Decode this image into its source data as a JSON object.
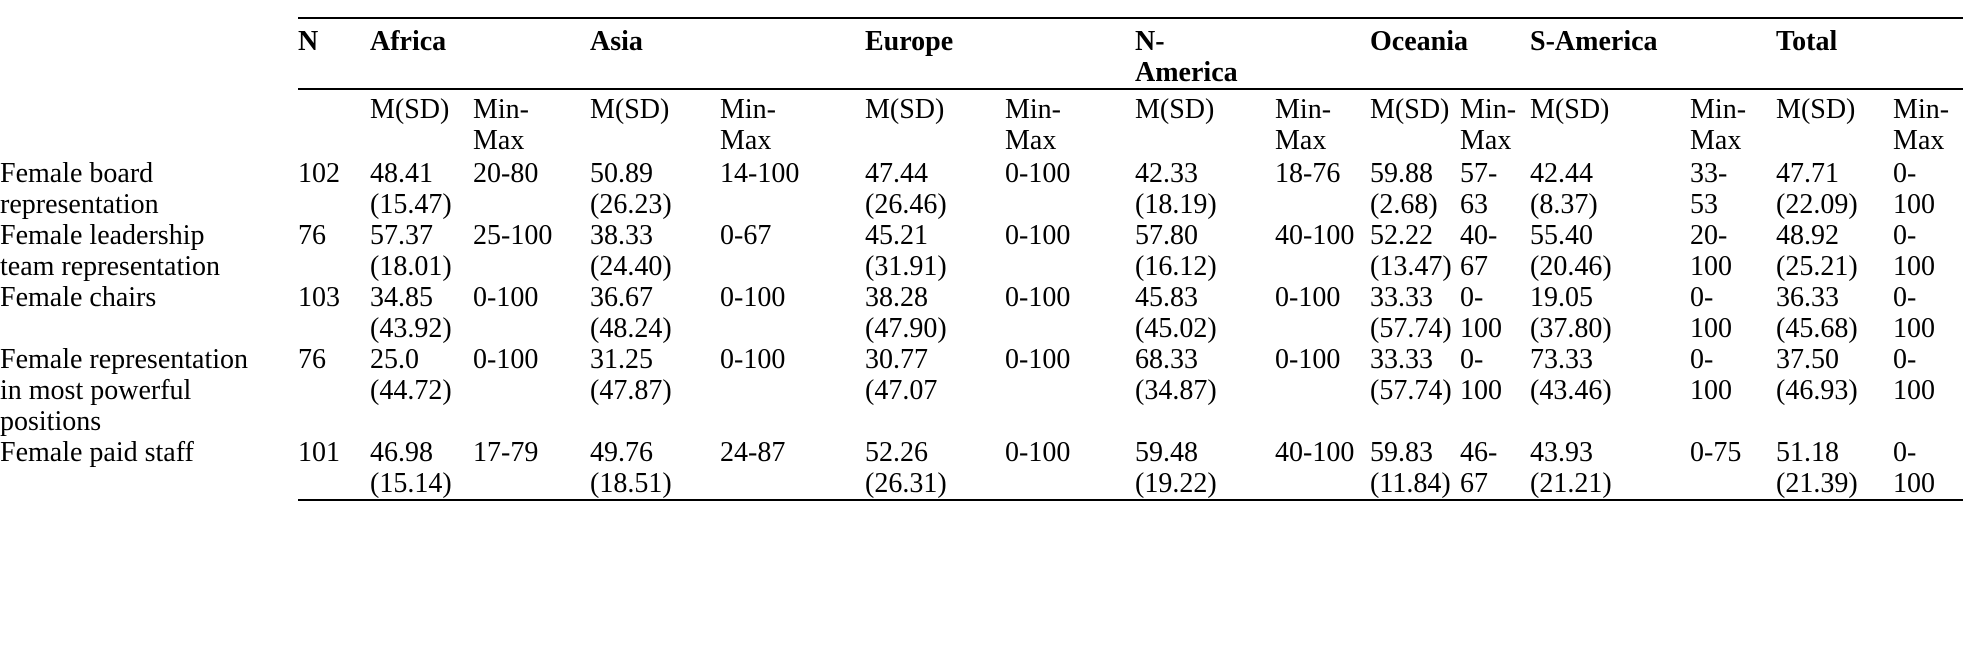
{
  "table": {
    "n_header": "N",
    "sub_header_m": "M(SD)",
    "sub_header_minmax": "Min-\nMax",
    "groups": [
      "Africa",
      "Asia",
      "Europe",
      "N-\nAmerica",
      "Oceania",
      "S-America",
      "Total"
    ],
    "rows": [
      {
        "label": "Female board\nrepresentation",
        "n": "102",
        "cells": [
          {
            "m": "48.41\n(15.47)",
            "minmax": "20-80"
          },
          {
            "m": "50.89\n(26.23)",
            "minmax": "14-100"
          },
          {
            "m": "47.44\n(26.46)",
            "minmax": "0-100"
          },
          {
            "m": "42.33\n(18.19)",
            "minmax": "18-76"
          },
          {
            "m": "59.88\n(2.68)",
            "minmax": "57-\n63"
          },
          {
            "m": "42.44\n(8.37)",
            "minmax": "33-\n53"
          },
          {
            "m": "47.71\n(22.09)",
            "minmax": "0-\n100"
          }
        ]
      },
      {
        "label": "Female leadership\nteam representation",
        "n": "76",
        "cells": [
          {
            "m": "57.37\n(18.01)",
            "minmax": "25-100"
          },
          {
            "m": "38.33\n(24.40)",
            "minmax": "0-67"
          },
          {
            "m": "45.21\n(31.91)",
            "minmax": "0-100"
          },
          {
            "m": "57.80\n(16.12)",
            "minmax": "40-100"
          },
          {
            "m": "52.22\n(13.47)",
            "minmax": "40-\n67"
          },
          {
            "m": "55.40\n(20.46)",
            "minmax": "20-\n100"
          },
          {
            "m": "48.92\n(25.21)",
            "minmax": "0-\n100"
          }
        ]
      },
      {
        "label": "Female chairs",
        "n": "103",
        "cells": [
          {
            "m": "34.85\n(43.92)",
            "minmax": "0-100"
          },
          {
            "m": "36.67\n(48.24)",
            "minmax": "0-100"
          },
          {
            "m": "38.28\n(47.90)",
            "minmax": "0-100"
          },
          {
            "m": "45.83\n(45.02)",
            "minmax": "0-100"
          },
          {
            "m": "33.33\n(57.74)",
            "minmax": "0-\n100"
          },
          {
            "m": "19.05\n(37.80)",
            "minmax": "0-\n100"
          },
          {
            "m": "36.33\n(45.68)",
            "minmax": "0-\n100"
          }
        ]
      },
      {
        "label": "Female representation\nin most powerful\npositions",
        "n": "76",
        "cells": [
          {
            "m": "25.0\n(44.72)",
            "minmax": "0-100"
          },
          {
            "m": "31.25\n(47.87)",
            "minmax": "0-100"
          },
          {
            "m": "30.77\n(47.07",
            "minmax": "0-100"
          },
          {
            "m": "68.33\n(34.87)",
            "minmax": "0-100"
          },
          {
            "m": "33.33\n(57.74)",
            "minmax": "0-\n100"
          },
          {
            "m": "73.33\n(43.46)",
            "minmax": "0-\n100"
          },
          {
            "m": "37.50\n(46.93)",
            "minmax": "0-\n100"
          }
        ]
      },
      {
        "label": "Female paid staff",
        "n": "101",
        "cells": [
          {
            "m": "46.98\n(15.14)",
            "minmax": "17-79"
          },
          {
            "m": "49.76\n(18.51)",
            "minmax": "24-87"
          },
          {
            "m": "52.26\n(26.31)",
            "minmax": "0-100"
          },
          {
            "m": "59.48\n(19.22)",
            "minmax": "40-100"
          },
          {
            "m": "59.83\n(11.84)",
            "minmax": "46-\n67"
          },
          {
            "m": "43.93\n(21.21)",
            "minmax": "0-75"
          },
          {
            "m": "51.18\n(21.39)",
            "minmax": "0-\n100"
          }
        ]
      }
    ]
  }
}
